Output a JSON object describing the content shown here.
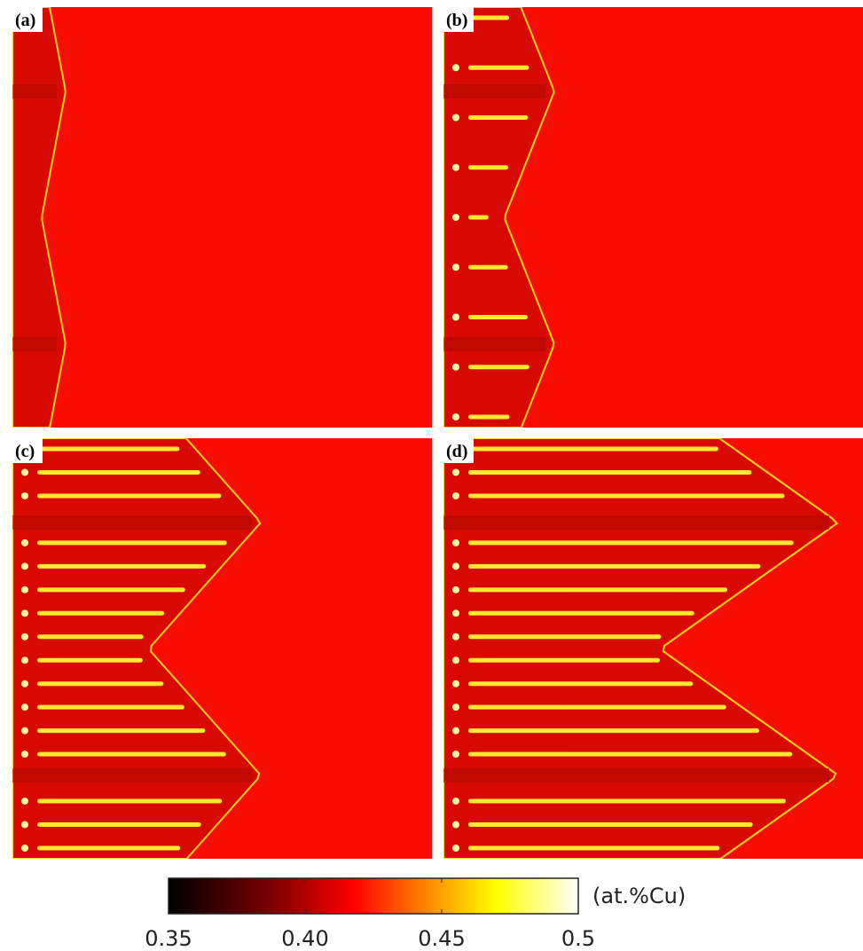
{
  "panels": [
    {
      "label": "(a)"
    },
    {
      "label": "(b)"
    },
    {
      "label": "(c)"
    },
    {
      "label": "(d)"
    }
  ],
  "colorbar": {
    "label": "(at.%Cu)",
    "lim": [
      0.35,
      0.5
    ],
    "ticks": [
      0.35,
      {
        "value": 0.4,
        "label": "0.40"
      },
      0.45,
      0.5
    ]
  }
}
